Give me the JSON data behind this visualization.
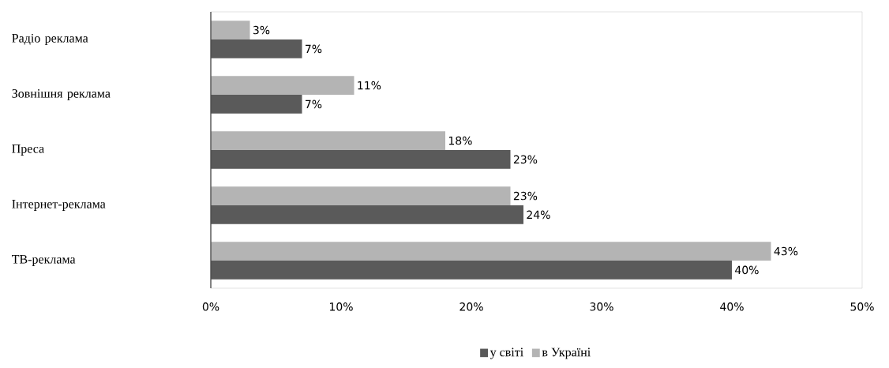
{
  "chart_data": {
    "type": "bar",
    "orientation": "horizontal",
    "categories": [
      "Радіо реклама",
      "Зовнішня реклама",
      "Преса",
      "Інтернет-реклама",
      "ТВ-реклама"
    ],
    "series": [
      {
        "name": "у світі",
        "color": "#5a5a5a",
        "values": [
          7,
          7,
          23,
          24,
          40
        ],
        "value_labels": [
          "7%",
          "7%",
          "23%",
          "24%",
          "40%"
        ]
      },
      {
        "name": "в Україні",
        "color": "#b4b4b4",
        "values": [
          3,
          11,
          18,
          23,
          43
        ],
        "value_labels": [
          "3%",
          "11%",
          "18%",
          "23%",
          "43%"
        ]
      }
    ],
    "xlim": [
      0,
      50
    ],
    "xticks": [
      {
        "value": 0,
        "label": "0%"
      },
      {
        "value": 10,
        "label": "10%"
      },
      {
        "value": 20,
        "label": "20%"
      },
      {
        "value": 30,
        "label": "30%"
      },
      {
        "value": 40,
        "label": "40%"
      },
      {
        "value": 50,
        "label": "50%"
      }
    ],
    "grid": false,
    "legend": "bottom"
  }
}
